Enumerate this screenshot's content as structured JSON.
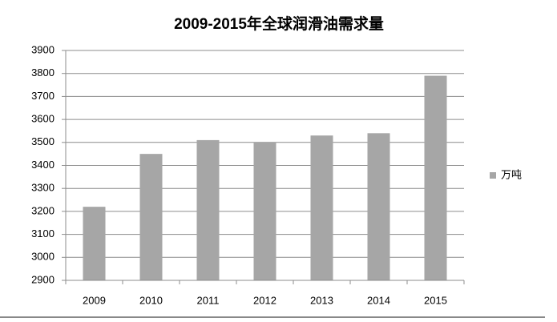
{
  "chart_data": {
    "type": "bar",
    "title": "2009-2015年全球润滑油需求量",
    "categories": [
      "2009",
      "2010",
      "2011",
      "2012",
      "2013",
      "2014",
      "2015"
    ],
    "series": [
      {
        "name": "万吨",
        "color": "#a6a6a6",
        "values": [
          3220,
          3450,
          3510,
          3500,
          3530,
          3540,
          3790
        ]
      }
    ],
    "ylim": [
      2900,
      3900
    ],
    "yticks": [
      2900,
      3000,
      3100,
      3200,
      3300,
      3400,
      3500,
      3600,
      3700,
      3800,
      3900
    ],
    "grid": true,
    "legend": "right"
  }
}
